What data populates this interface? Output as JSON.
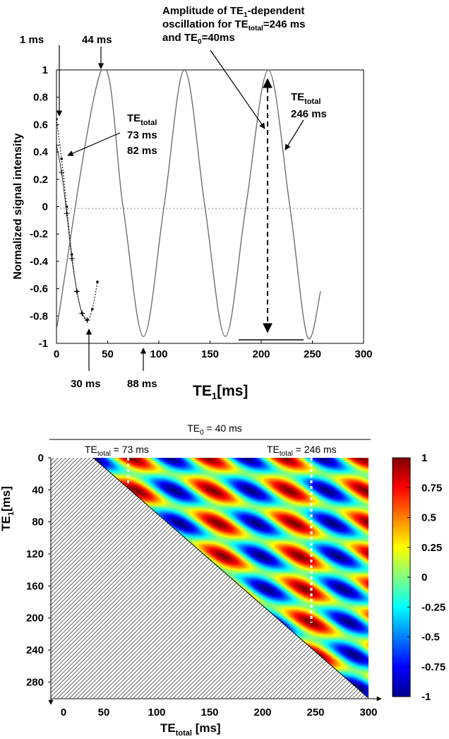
{
  "chart_data": [
    {
      "type": "line",
      "xlabel_main": "TE",
      "xlabel_sub": "1",
      "xlabel_unit": "[ms]",
      "ylabel": "Normalized signal intensity",
      "xlim": [
        0,
        300
      ],
      "ylim": [
        -1,
        1
      ],
      "xticks": [
        "0",
        "50",
        "100",
        "150",
        "200",
        "250",
        "300"
      ],
      "yticks": [
        "1",
        "0.8",
        "0.6",
        "0.4",
        "0.2",
        "0",
        "-0.2",
        "-0.4",
        "-0.6",
        "-0.8",
        "-1"
      ],
      "zero_line": "dotted",
      "series": [
        {
          "description": "TE_total = 246 ms",
          "style": "solid-grey",
          "x": [
            0,
            44,
            65,
            85,
            105,
            125,
            145,
            165,
            185,
            207,
            228,
            245,
            258
          ],
          "y": [
            -0.9,
            1.0,
            0.0,
            -0.95,
            0.0,
            1.0,
            0.0,
            -0.95,
            0.0,
            1.0,
            0.0,
            -0.95,
            -0.62
          ]
        },
        {
          "description": "TE_total = 73 ms",
          "style": "dotted-markers",
          "x": [
            0,
            5,
            10,
            15,
            20,
            25,
            30,
            35,
            40
          ],
          "y": [
            0.64,
            0.35,
            0.0,
            -0.35,
            -0.62,
            -0.78,
            -0.83,
            -0.75,
            -0.55
          ]
        },
        {
          "description": "TE_total = 82 ms",
          "style": "plus-markers",
          "x": [
            0,
            5,
            10,
            15,
            20,
            25,
            30
          ],
          "y": [
            0.45,
            0.25,
            -0.05,
            -0.38,
            -0.62,
            -0.78,
            -0.83
          ]
        }
      ],
      "annotations": {
        "label_1ms": "1 ms",
        "label_44ms": "44 ms",
        "label_30ms": "30 ms",
        "label_88ms": "88 ms",
        "amp_line1": "Amplitude of TE",
        "amp_line1_sub": "1",
        "amp_line1_end": "-dependent",
        "amp_line2": "oscillation for TE",
        "amp_line2_sub": "total",
        "amp_line2_end": "=246 ms",
        "amp_line3": "and TE",
        "amp_line3_sub": "0",
        "amp_line3_end": "=40ms",
        "tetotal_a": "TE",
        "tetotal_a_sub": "total",
        "tetotal_a_v1": "73 ms",
        "tetotal_a_v2": "82 ms",
        "tetotal_b": "TE",
        "tetotal_b_sub": "total",
        "tetotal_b_v1": "246 ms"
      }
    },
    {
      "type": "heatmap",
      "header": "TE",
      "header_sub": "0",
      "header_end": " = 40 ms",
      "marker_a": "TE",
      "marker_a_sub": "total",
      "marker_a_end": " = 73 ms",
      "marker_b": "TE",
      "marker_b_sub": "total",
      "marker_b_end": " = 246 ms",
      "xlabel_main": "TE",
      "xlabel_sub": "total",
      "xlabel_unit": " [ms]",
      "ylabel_main": "TE",
      "ylabel_sub": "1",
      "ylabel_unit": "[ms]",
      "xlim": [
        0,
        300
      ],
      "ylim": [
        0,
        300
      ],
      "xticks": [
        "0",
        "50",
        "100",
        "150",
        "200",
        "250",
        "300"
      ],
      "yticks": [
        "0",
        "40",
        "80",
        "120",
        "160",
        "200",
        "240",
        "280"
      ],
      "colorbar_ticks": [
        "1",
        "0.75",
        "0.5",
        "0.25",
        "0",
        "-0.25",
        "-0.5",
        "-0.75",
        "-1"
      ],
      "colorbar_range": [
        -1,
        1
      ],
      "colormap": "jet",
      "te0": 40,
      "markers_x": [
        73,
        246
      ],
      "masked_region": "hatched"
    }
  ]
}
